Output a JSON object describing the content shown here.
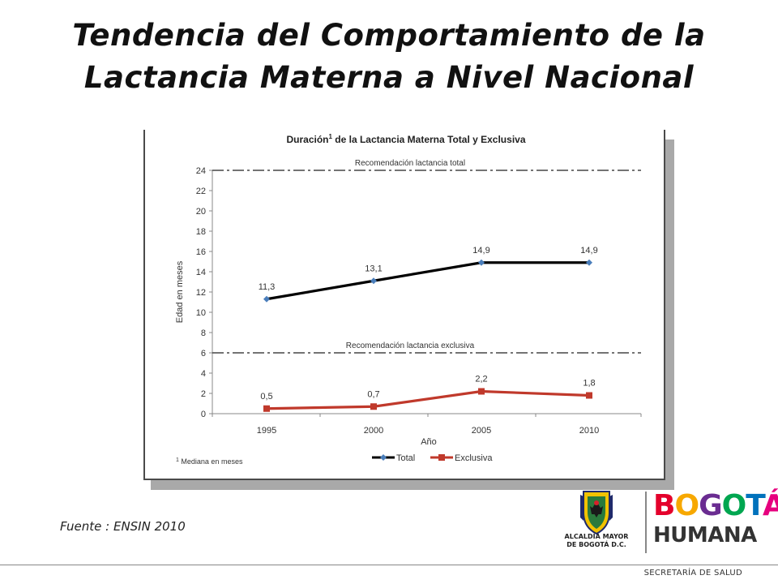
{
  "title": {
    "line1": "Tendencia del Comportamiento de la",
    "line2": "Lactancia Materna a Nivel Nacional"
  },
  "source": "Fuente : ENSIN 2010",
  "logos": {
    "crest_caption_line1": "ALCALDÍA MAYOR",
    "crest_caption_line2": "DE BOGOTÁ D.C.",
    "brand_letters_top": [
      "B",
      "O",
      "G",
      "O",
      "T",
      "Á"
    ],
    "brand_colors_top": [
      "#e4002b",
      "#f7a800",
      "#6a2c91",
      "#00a650",
      "#0072bc",
      "#e6007e"
    ],
    "brand_bottom": "HUMANA"
  },
  "footer": "SECRETARÍA DE SALUD",
  "colors": {
    "total": "#000000",
    "total_marker": "#4a7ebb",
    "exclusive": "#c0392b",
    "gridline": "#000000"
  },
  "chart_data": {
    "type": "line",
    "title": "Duración",
    "title_sup": "1",
    "title_rest": " de la Lactancia Materna Total y Exclusiva",
    "xlabel": "Año",
    "ylabel": "Edad en meses",
    "categories": [
      "1995",
      "2000",
      "2005",
      "2010"
    ],
    "ylim": [
      0,
      24
    ],
    "yticks": [
      0,
      2,
      4,
      6,
      8,
      10,
      12,
      14,
      16,
      18,
      20,
      22,
      24
    ],
    "series": [
      {
        "name": "Total",
        "values": [
          11.3,
          13.1,
          14.9,
          14.9
        ],
        "labels": [
          "11,3",
          "13,1",
          "14,9",
          "14,9"
        ]
      },
      {
        "name": "Exclusiva",
        "values": [
          0.5,
          0.7,
          2.2,
          1.8
        ],
        "labels": [
          "0,5",
          "0,7",
          "2,2",
          "1,8"
        ]
      }
    ],
    "reference_lines": [
      {
        "value": 24,
        "label": "Recomendación lactancia total"
      },
      {
        "value": 6,
        "label": "Recomendación lactancia exclusiva"
      }
    ],
    "footnote_sup": "1",
    "footnote": " Mediana en meses",
    "legend_position": "bottom",
    "grid": false
  }
}
